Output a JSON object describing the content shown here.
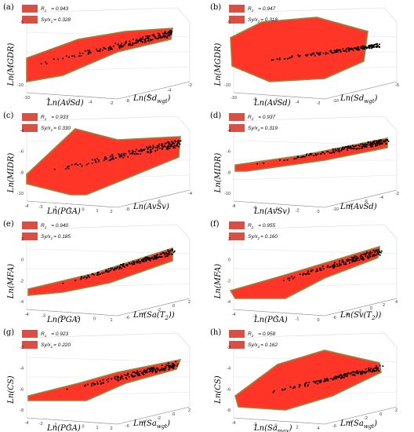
{
  "colors": {
    "surface": "#ff2a1c",
    "surface_edge": "#8e8a40",
    "points": "#000000",
    "legend_patch": "#d65046",
    "grid": "#d8d8d8"
  },
  "chart_data": [
    {
      "panel": "(a)",
      "type": "scatter",
      "zlabel": "Ln(MGDR)",
      "xlabel": "Ln(AvSd)",
      "ylabel": "Ln(Sd",
      "ylabel_sub": "wgt",
      "ylabel_tail": ")",
      "legend": {
        "r2_label": "R",
        "r2_sub": "1",
        "r2_value": "= 0.943",
        "sy_label": "Sy/x",
        "sy_sub": "1",
        "sy_value": "= 0.328"
      },
      "z_ticks": [
        "-5",
        "-10"
      ],
      "x_ticks": [
        "-10",
        "-8",
        "-6",
        "-4",
        "-2"
      ],
      "y_ticks": [
        "-8",
        "-6",
        "-4",
        "-2"
      ]
    },
    {
      "panel": "(b)",
      "type": "scatter",
      "zlabel": "Ln(MGDR)",
      "xlabel": "Ln(AvSd)",
      "ylabel": "Ln(Sd",
      "ylabel_sub": "wgt",
      "ylabel_tail": ")",
      "legend": {
        "r2_label": "R",
        "r2_sub": "2",
        "r2_value": "= 0.947",
        "sy_label": "Sy/x",
        "sy_sub": "2",
        "sy_value": "= 0.318"
      },
      "z_ticks": [
        "-5",
        "-10"
      ],
      "x_ticks": [
        "-10",
        "-8",
        "-6",
        "-4",
        "-2"
      ],
      "y_ticks": [
        "-10",
        "-5"
      ]
    },
    {
      "panel": "(c)",
      "type": "scatter",
      "zlabel": "Ln(MIDR)",
      "xlabel": "Ln(PGA)",
      "ylabel": "Ln(AvSv)",
      "ylabel_sub": "",
      "ylabel_tail": "",
      "legend": {
        "r2_label": "R",
        "r2_sub": "1",
        "r2_value": "= 0.933",
        "sy_label": "Sy/x",
        "sy_sub": "1",
        "sy_value": "= 0.330"
      },
      "z_ticks": [
        "-4",
        "-6",
        "-8",
        "-10"
      ],
      "x_ticks": [
        "-4",
        "-3",
        "-2",
        "-1",
        "0",
        "1",
        "2"
      ],
      "y_ticks": [
        "-8",
        "-6",
        "-4"
      ]
    },
    {
      "panel": "(d)",
      "type": "scatter",
      "zlabel": "Ln(MIDR)",
      "xlabel": "Ln(AvSv)",
      "ylabel": "Ln(AvSd)",
      "ylabel_sub": "",
      "ylabel_tail": "",
      "legend": {
        "r2_label": "R",
        "r2_sub": "2",
        "r2_value": "= 0.937",
        "sy_label": "Sy/x",
        "sy_sub": "2",
        "sy_value": "= 0.319"
      },
      "z_ticks": [
        "-4",
        "-6",
        "-8",
        "-10"
      ],
      "x_ticks": [
        "-8",
        "-6",
        "-4",
        "-2",
        "0"
      ],
      "y_ticks": [
        "-10",
        "-8",
        "-6",
        "-4",
        "-2"
      ]
    },
    {
      "panel": "(e)",
      "type": "scatter",
      "zlabel": "Ln(MFA)",
      "xlabel": "Ln(PGA)",
      "ylabel": "Ln(Sa(T",
      "ylabel_sub": "2",
      "ylabel_tail": "))",
      "legend": {
        "r2_label": "R",
        "r2_sub": "1",
        "r2_value": "= 0.940",
        "sy_label": "Sy/x",
        "sy_sub": "1",
        "sy_value": "= 0.185"
      },
      "z_ticks": [
        "2",
        "0",
        "-2",
        "-4"
      ],
      "x_ticks": [
        "-4",
        "-3",
        "-2",
        "-1",
        "0",
        "1"
      ],
      "y_ticks": [
        "-6",
        "-4",
        "-2",
        "0",
        "2"
      ]
    },
    {
      "panel": "(f)",
      "type": "scatter",
      "zlabel": "Ln(MFA)",
      "xlabel": "Ln(PGA)",
      "ylabel": "Ln(Sv(T",
      "ylabel_sub": "2",
      "ylabel_tail": "))",
      "legend": {
        "r2_label": "R",
        "r2_sub": "2",
        "r2_value": "= 0.955",
        "sy_label": "Sy/x",
        "sy_sub": "2",
        "sy_value": "= 0.160"
      },
      "z_ticks": [
        "2",
        "0",
        "-2",
        "-4"
      ],
      "x_ticks": [
        "-4",
        "-3",
        "-2",
        "-1",
        "0"
      ],
      "y_ticks": [
        "-6",
        "-4",
        "-2",
        "0",
        "2",
        "4"
      ]
    },
    {
      "panel": "(g)",
      "type": "scatter",
      "zlabel": "Ln(CS)",
      "xlabel": "Ln(PGA)",
      "ylabel": "Ln(Sa",
      "ylabel_sub": "wgt",
      "ylabel_tail": ")",
      "legend": {
        "r2_label": "R",
        "r2_sub": "1",
        "r2_value": "= 0.923",
        "sy_label": "Sy/x",
        "sy_sub": "1",
        "sy_value": "= 0.220"
      },
      "z_ticks": [
        "-2",
        "-4",
        "-6",
        "-8"
      ],
      "x_ticks": [
        "-4",
        "-3",
        "-2",
        "-1",
        "0",
        "1",
        "2"
      ],
      "y_ticks": [
        "-6",
        "-4",
        "-2",
        "0",
        "2"
      ]
    },
    {
      "panel": "(h)",
      "type": "scatter",
      "zlabel": "Ln(CS)",
      "xlabel": "Ln(Sa",
      "xlabel_sub": "max",
      "xlabel_tail": ")",
      "ylabel": "Ln(Sa",
      "ylabel_sub": "wgt",
      "ylabel_tail": ")",
      "legend": {
        "r2_label": "R",
        "r2_sub": "2",
        "r2_value": "= 0.958",
        "sy_label": "Sy/x",
        "sy_sub": "2",
        "sy_value": "= 0.162"
      },
      "z_ticks": [
        "-2",
        "-4",
        "-6",
        "-8"
      ],
      "x_ticks": [
        "-4",
        "-2",
        "0",
        "2",
        "4"
      ],
      "y_ticks": [
        "-6",
        "-4",
        "-2",
        "0",
        "2"
      ]
    }
  ]
}
